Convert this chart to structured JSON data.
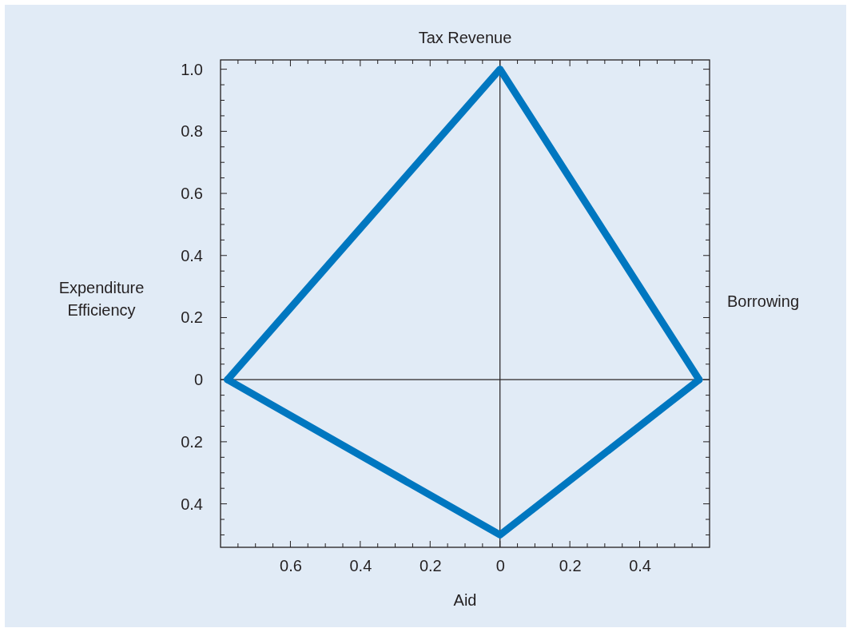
{
  "chart_data": {
    "type": "line",
    "title": "Tax Revenue",
    "xlabel": "Aid",
    "ylabel": "Expenditure Efficiency",
    "y2label": "Borrowing",
    "x": [
      -0.78,
      0,
      0.57
    ],
    "series": [
      {
        "color": "#0077c0",
        "values": [
          0,
          1.0,
          0
        ]
      },
      {
        "color": "#0077c0",
        "values": [
          0,
          -0.5,
          0
        ]
      }
    ],
    "xlim": [
      -0.8,
      0.6
    ],
    "xticks": [
      {
        "value": -0.75,
        "label": null
      },
      {
        "value": -0.6,
        "label": "0.6"
      },
      {
        "value": -0.65,
        "label": null
      },
      {
        "value": -0.7,
        "label": null
      },
      {
        "value": -0.55,
        "label": null
      },
      {
        "value": -0.5,
        "label": null
      },
      {
        "value": -0.45,
        "label": null
      },
      {
        "value": -0.4,
        "label": "0.4"
      },
      {
        "value": -0.35,
        "label": null
      },
      {
        "value": -0.3,
        "label": null
      },
      {
        "value": -0.25,
        "label": null
      },
      {
        "value": -0.2,
        "label": "0.2"
      },
      {
        "value": -0.15,
        "label": null
      },
      {
        "value": -0.1,
        "label": null
      },
      {
        "value": -0.05,
        "label": null
      },
      0,
      {
        "value": 0.05,
        "label": null
      },
      {
        "value": 0.1,
        "label": null
      },
      {
        "value": 0.15,
        "label": null
      },
      {
        "value": 0.2,
        "label": "0.2"
      },
      {
        "value": 0.25,
        "label": null
      },
      {
        "value": 0.3,
        "label": null
      },
      {
        "value": 0.35,
        "label": null
      },
      {
        "value": 0.4,
        "label": "0.4"
      },
      {
        "value": 0.45,
        "label": null
      },
      {
        "value": 0.5,
        "label": null
      },
      {
        "value": 0.55,
        "label": null
      }
    ],
    "ylim": [
      -0.54,
      1.03
    ],
    "yticks": [
      {
        "value": -0.5,
        "label": null
      },
      {
        "value": -0.45,
        "label": null
      },
      {
        "value": -0.4,
        "label": "0.4"
      },
      {
        "value": -0.35,
        "label": null
      },
      {
        "value": -0.3,
        "label": null
      },
      {
        "value": -0.25,
        "label": null
      },
      {
        "value": -0.2,
        "label": "0.2"
      },
      {
        "value": -0.15,
        "label": null
      },
      {
        "value": -0.1,
        "label": null
      },
      {
        "value": -0.05,
        "label": null
      },
      0,
      {
        "value": 0.05,
        "label": null
      },
      {
        "value": 0.1,
        "label": null
      },
      {
        "value": 0.15,
        "label": null
      },
      0.2,
      {
        "value": 0.25,
        "label": null
      },
      {
        "value": 0.3,
        "label": null
      },
      {
        "value": 0.35,
        "label": null
      },
      0.4,
      {
        "value": 0.45,
        "label": null
      },
      {
        "value": 0.5,
        "label": null
      },
      {
        "value": 0.55,
        "label": null
      },
      0.6,
      {
        "value": 0.65,
        "label": null
      },
      {
        "value": 0.7,
        "label": null
      },
      {
        "value": 0.75,
        "label": null
      },
      0.8,
      {
        "value": 0.85,
        "label": null
      },
      {
        "value": 0.9,
        "label": null
      },
      {
        "value": 0.95,
        "label": null
      },
      {
        "value": 1.0,
        "label": "1.0"
      }
    ],
    "ref_lines": [
      {
        "axis": "x",
        "value": 0,
        "color": "#231f20"
      },
      {
        "axis": "y",
        "value": 0,
        "color": "#2a2627"
      }
    ],
    "grid": false,
    "marker": "none",
    "line_style": "solid"
  }
}
